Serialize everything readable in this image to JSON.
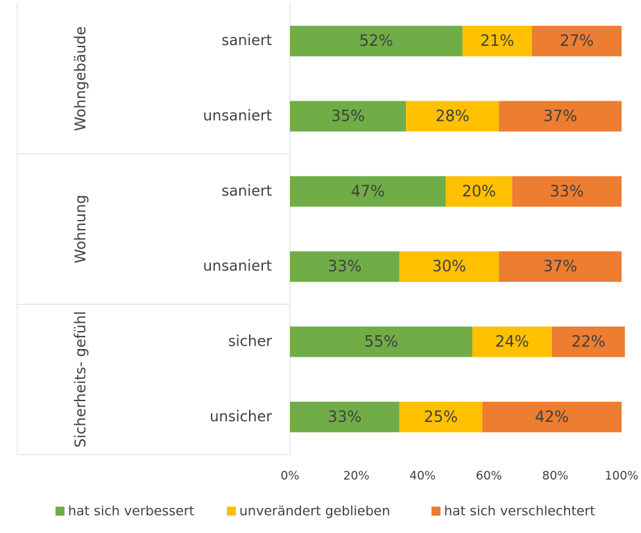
{
  "chart_data": {
    "type": "stacked_bar_horizontal",
    "categories": [
      "saniert",
      "unsaniert",
      "saniert",
      "unsaniert",
      "sicher",
      "unsicher"
    ],
    "category_groups": [
      "Wohngebäude",
      "Wohngebäude",
      "Wohnung",
      "Wohnung",
      "Sicherheits- gefühl",
      "Sicherheits- gefühl"
    ],
    "series": [
      {
        "name": "hat sich verbessert",
        "color": "#70ad47",
        "values": [
          52,
          35,
          47,
          33,
          55,
          33
        ],
        "value_labels": [
          "52%",
          "35%",
          "47%",
          "33%",
          "55%",
          "33%"
        ]
      },
      {
        "name": "unverändert geblieben",
        "color": "#ffc000",
        "values": [
          21,
          28,
          20,
          30,
          24,
          25
        ],
        "value_labels": [
          "21%",
          "28%",
          "20%",
          "30%",
          "24%",
          "25%"
        ]
      },
      {
        "name": "hat sich verschlechtert",
        "color": "#ed7d31",
        "values": [
          27,
          37,
          33,
          37,
          22,
          42
        ],
        "value_labels": [
          "27%",
          "37%",
          "33%",
          "37%",
          "22%",
          "42%"
        ]
      }
    ],
    "xlim": [
      0,
      100
    ],
    "xticks": [
      {
        "value": 0,
        "label": "0%"
      },
      {
        "value": 20,
        "label": "20%"
      },
      {
        "value": 40,
        "label": "40%"
      },
      {
        "value": 60,
        "label": "60%"
      },
      {
        "value": 80,
        "label": "80%"
      },
      {
        "value": 100,
        "label": "100%"
      }
    ],
    "legend": "bottom"
  }
}
